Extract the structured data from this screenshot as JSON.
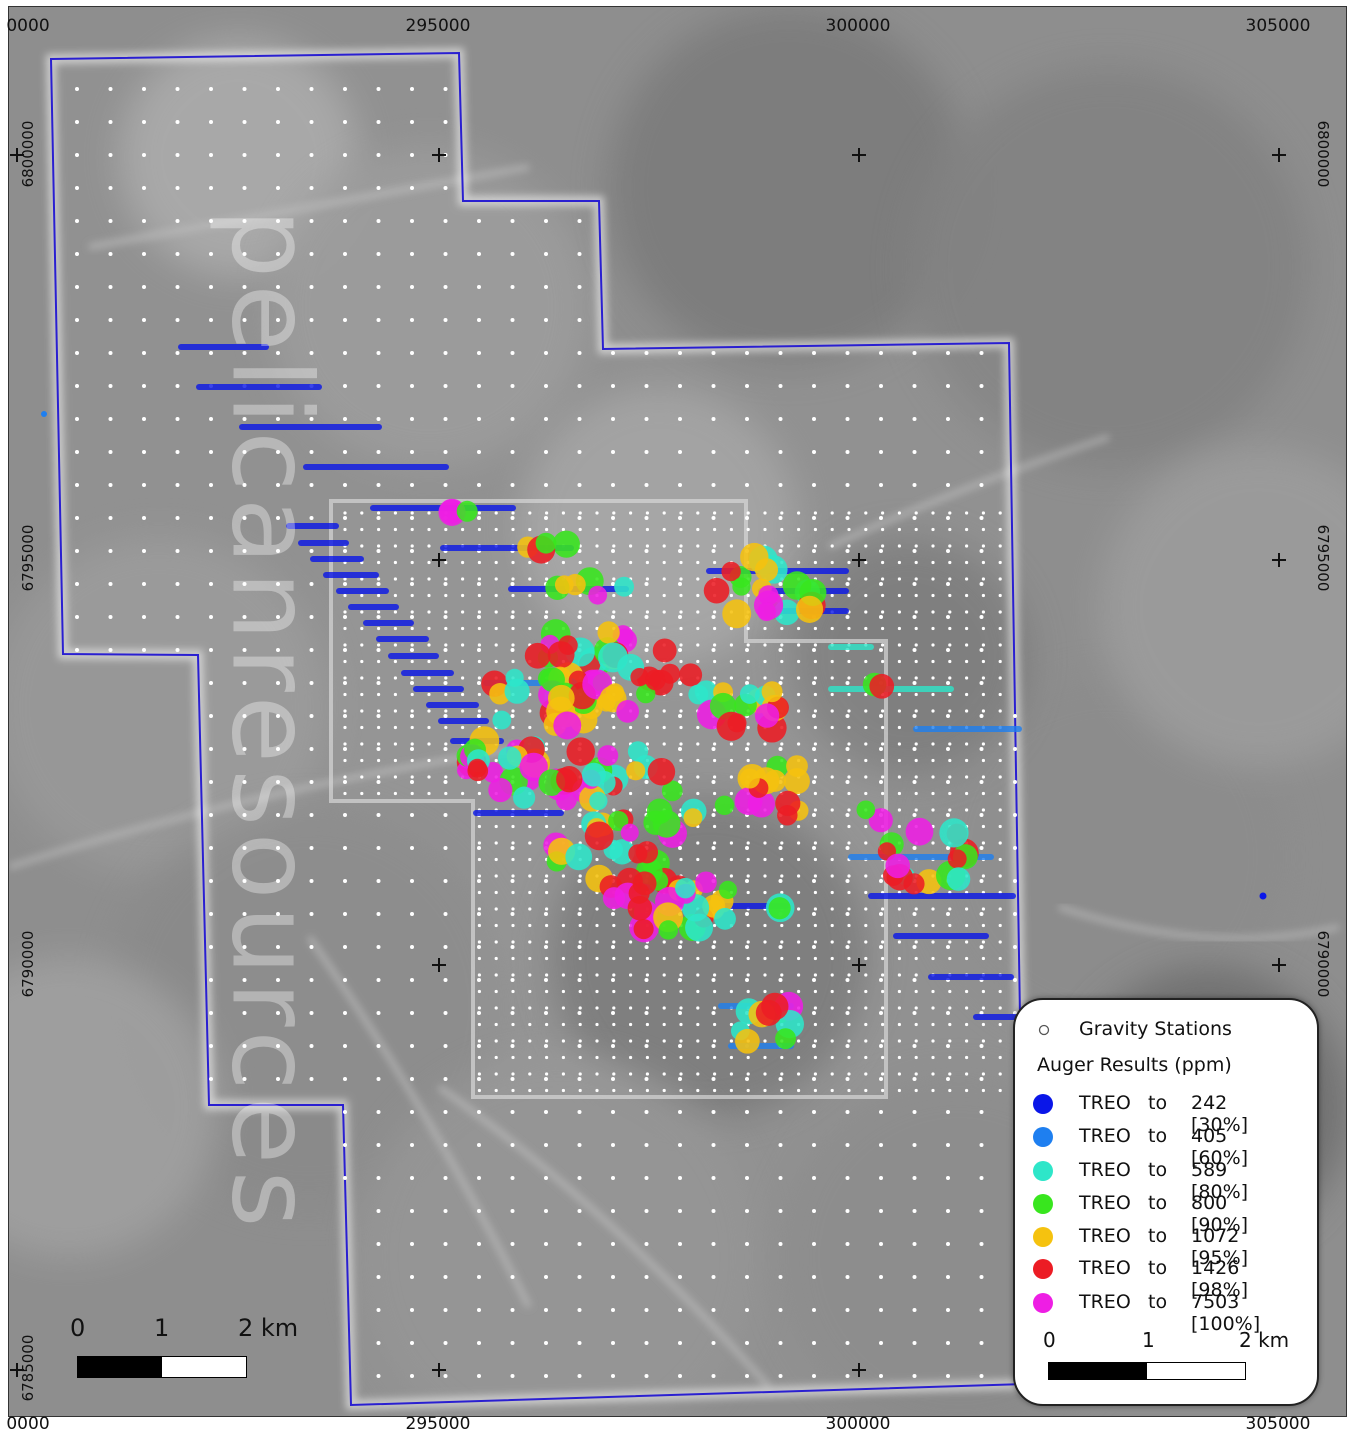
{
  "map": {
    "x_ticks": [
      "0000",
      "295000",
      "300000",
      "305000"
    ],
    "y_ticks": [
      "6800000",
      "6795000",
      "6790000",
      "6785000"
    ],
    "watermark": "pelicanresources",
    "boundary_color": "#2a1fd1"
  },
  "legend": {
    "gravity_label": "Gravity Stations",
    "auger_title": "Auger Results (ppm)",
    "items": [
      {
        "label": "TREO",
        "to": "to",
        "value": "242 [30%]",
        "color": "#0a16e8"
      },
      {
        "label": "TREO",
        "to": "to",
        "value": "405 [60%]",
        "color": "#1e7ff0"
      },
      {
        "label": "TREO",
        "to": "to",
        "value": "589 [80%]",
        "color": "#2ee6c9"
      },
      {
        "label": "TREO",
        "to": "to",
        "value": "800 [90%]",
        "color": "#38e61e"
      },
      {
        "label": "TREO",
        "to": "to",
        "value": "1072 [95%]",
        "color": "#f5c20f"
      },
      {
        "label": "TREO",
        "to": "to",
        "value": "1426 [98%]",
        "color": "#ec1c24"
      },
      {
        "label": "TREO",
        "to": "to",
        "value": "7503 [100%]",
        "color": "#ee1ee4"
      }
    ],
    "scale": {
      "l0": "0",
      "l1": "1",
      "l2": "2 km"
    }
  },
  "map_scale": {
    "l0": "0",
    "l1": "1",
    "l2": "2 km"
  }
}
